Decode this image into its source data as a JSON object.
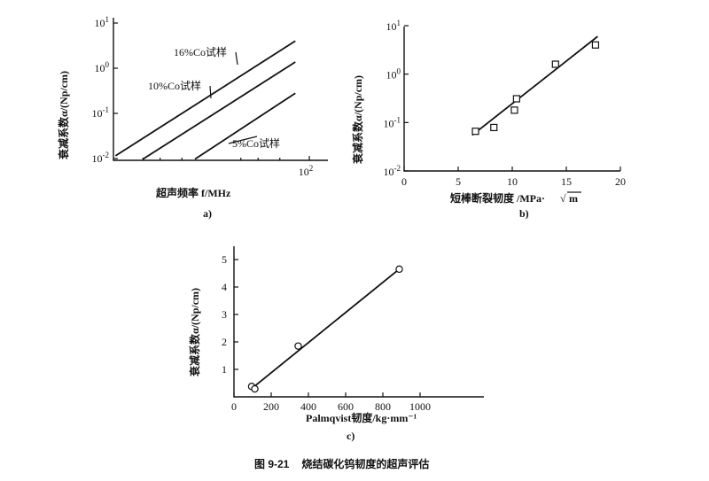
{
  "chart_data": [
    {
      "id": "a",
      "type": "line",
      "label": "a)",
      "xlabel": "超声频率 f/MHz",
      "ylabel": "衰减系数α/(Np/cm)",
      "xscale": "log",
      "yscale": "log",
      "xlim": [
        1,
        100
      ],
      "ylim": [
        0.01,
        10
      ],
      "x_ticks": [
        {
          "value": 100,
          "base": "10",
          "exp": "2"
        }
      ],
      "y_ticks": [
        {
          "value": 0.01,
          "base": "10",
          "exp": "-2"
        },
        {
          "value": 0.1,
          "base": "10",
          "exp": "-1"
        },
        {
          "value": 1,
          "base": "10",
          "exp": "0"
        },
        {
          "value": 10,
          "base": "10",
          "exp": "1"
        }
      ],
      "series": [
        {
          "name": "16%Co试样",
          "x": [
            1.05,
            72
          ],
          "y": [
            0.0115,
            4.0
          ]
        },
        {
          "name": "10%Co试样",
          "x": [
            2.0,
            72
          ],
          "y": [
            0.0097,
            1.37
          ]
        },
        {
          "name": "5%Co试样",
          "x": [
            6.8,
            72
          ],
          "y": [
            0.0097,
            0.28
          ]
        }
      ]
    },
    {
      "id": "b",
      "type": "scatter",
      "label": "b)",
      "xlabel": "短棒断裂韧度 /MPa·",
      "xlabel_unit": "m",
      "ylabel": "衰减系数α/(Np/cm)",
      "xscale": "linear",
      "yscale": "log",
      "xlim": [
        0,
        20
      ],
      "ylim": [
        0.01,
        10
      ],
      "x_ticks": [
        {
          "value": 0,
          "label": "0"
        },
        {
          "value": 5,
          "label": "5"
        },
        {
          "value": 10,
          "label": "10"
        },
        {
          "value": 15,
          "label": "15"
        },
        {
          "value": 20,
          "label": "20"
        }
      ],
      "y_ticks": [
        {
          "value": 0.01,
          "base": "10",
          "exp": "-2"
        },
        {
          "value": 0.1,
          "base": "10",
          "exp": "-1"
        },
        {
          "value": 1,
          "base": "10",
          "exp": "0"
        },
        {
          "value": 10,
          "base": "10",
          "exp": "1"
        }
      ],
      "points": {
        "x": [
          6.6,
          8.3,
          10.2,
          10.4,
          14.0,
          17.7
        ],
        "y": [
          0.066,
          0.079,
          0.18,
          0.31,
          1.6,
          4.0
        ]
      },
      "fit": {
        "x": [
          6.3,
          17.9
        ],
        "y": [
          0.055,
          6.0
        ]
      }
    },
    {
      "id": "c",
      "type": "scatter",
      "label": "c)",
      "xlabel": "Palmqvist韧度/kg·mm⁻¹",
      "ylabel": "衰减系数α/(Np/cm)",
      "xscale": "linear",
      "yscale": "linear",
      "xlim": [
        0,
        1200
      ],
      "ylim": [
        0,
        5.5
      ],
      "x_ticks": [
        {
          "value": 0,
          "label": "0"
        },
        {
          "value": 200,
          "label": "200"
        },
        {
          "value": 400,
          "label": "400"
        },
        {
          "value": 600,
          "label": "600"
        },
        {
          "value": 800,
          "label": "800"
        },
        {
          "value": 1000,
          "label": "1000"
        }
      ],
      "y_ticks": [
        {
          "value": 1,
          "label": "1"
        },
        {
          "value": 2,
          "label": "2"
        },
        {
          "value": 3,
          "label": "3"
        },
        {
          "value": 4,
          "label": "4"
        },
        {
          "value": 5,
          "label": "5"
        }
      ],
      "points": {
        "x": [
          95,
          112,
          345,
          888
        ],
        "y": [
          0.38,
          0.29,
          1.85,
          4.65
        ]
      },
      "fit": {
        "x": [
          100,
          888
        ],
        "y": [
          0.33,
          4.65
        ]
      }
    }
  ],
  "caption": {
    "number": "图 9-21",
    "text": "烧结碳化钨韧度的超声评估"
  }
}
